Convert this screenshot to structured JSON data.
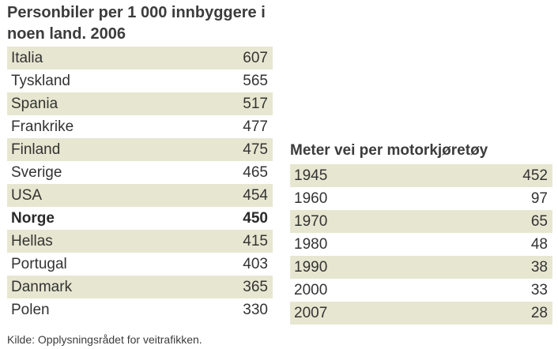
{
  "cars_table": {
    "title": "Personbiler per 1 000 innbyggere i noen land. 2006",
    "rows": [
      {
        "country": "Italia",
        "value": "607"
      },
      {
        "country": "Tyskland",
        "value": "565"
      },
      {
        "country": "Spania",
        "value": "517"
      },
      {
        "country": "Frankrike",
        "value": "477"
      },
      {
        "country": "Finland",
        "value": "475"
      },
      {
        "country": "Sverige",
        "value": "465"
      },
      {
        "country": "USA",
        "value": "454"
      },
      {
        "country": "Norge",
        "value": "450"
      },
      {
        "country": "Hellas",
        "value": "415"
      },
      {
        "country": "Portugal",
        "value": "403"
      },
      {
        "country": "Danmark",
        "value": "365"
      },
      {
        "country": "Polen",
        "value": "330"
      }
    ],
    "highlighted_country": "Norge"
  },
  "road_table": {
    "title": "Meter vei per motorkjøretøy",
    "rows": [
      {
        "year": "1945",
        "value": "452"
      },
      {
        "year": "1960",
        "value": "97"
      },
      {
        "year": "1970",
        "value": "65"
      },
      {
        "year": "1980",
        "value": "48"
      },
      {
        "year": "1990",
        "value": "38"
      },
      {
        "year": "2000",
        "value": "33"
      },
      {
        "year": "2007",
        "value": "28"
      }
    ]
  },
  "source": "Kilde: Opplysningsrådet for veitrafikken.",
  "colors": {
    "row_shade": "#e7e7d1",
    "text": "#333333"
  }
}
